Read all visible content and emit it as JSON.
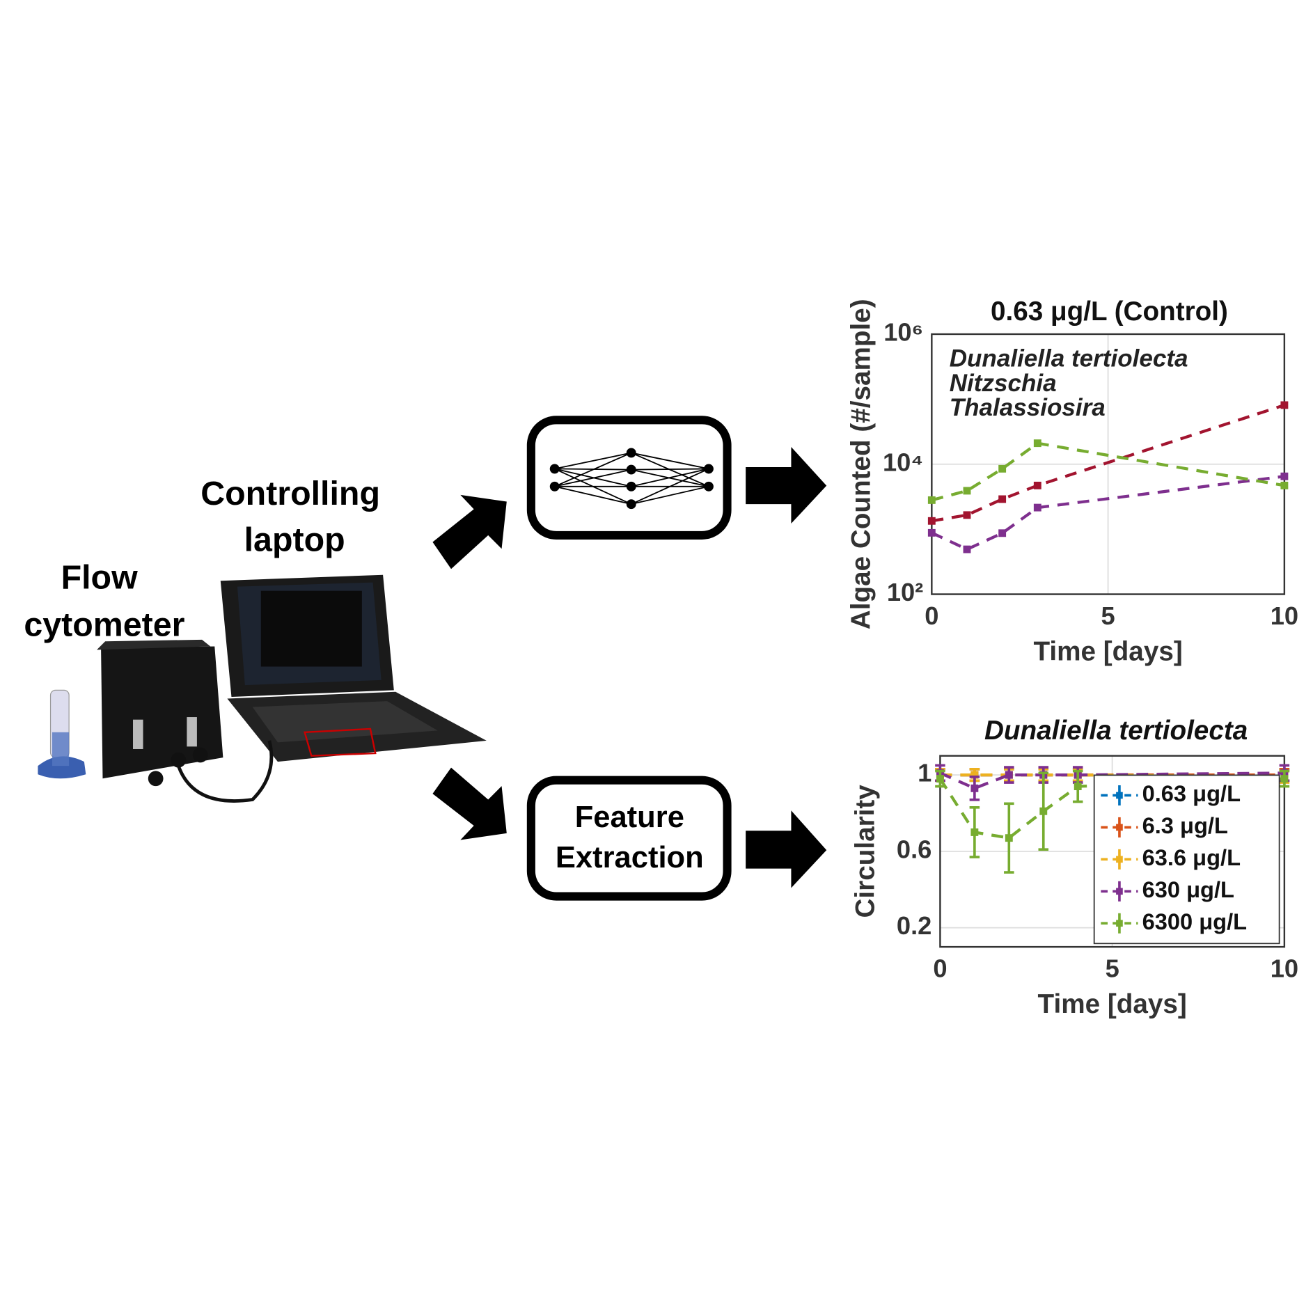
{
  "labels": {
    "flow_cytometer": [
      "Flow",
      "cytometer"
    ],
    "laptop": [
      "Controlling",
      "laptop"
    ],
    "feature_extraction": [
      "Feature",
      "Extraction"
    ]
  },
  "chart_data": [
    {
      "type": "line",
      "title": "0.63 μg/L (Control)",
      "x_label": "Time [days]",
      "y_label": "Algae Counted (#/sample)",
      "x": [
        0,
        1,
        2,
        3,
        10
      ],
      "xlim": [
        0,
        10
      ],
      "xticks": [
        0,
        5,
        10
      ],
      "ylim": [
        100,
        1000000
      ],
      "log_y": true,
      "yticks": [
        {
          "value": 100,
          "label": "10²"
        },
        {
          "value": 10000,
          "label": "10⁴"
        },
        {
          "value": 1000000,
          "label": "10⁶"
        }
      ],
      "grid": true,
      "legend": "upper left",
      "series": [
        {
          "name": "Dunaliella tertiolecta",
          "color": "#a2142f",
          "values": [
            1340,
            1650,
            2900,
            4700,
            81000
          ]
        },
        {
          "name": "Nitzschia",
          "color": "#7e2f8e",
          "values": [
            880,
            490,
            870,
            2150,
            6500
          ]
        },
        {
          "name": "Thalassiosira",
          "color": "#77ac30",
          "values": [
            2800,
            3900,
            8500,
            21000,
            4700
          ]
        }
      ]
    },
    {
      "type": "line",
      "title": "Dunaliella tertiolecta",
      "x_label": "Time [days]",
      "y_label": "Circularity",
      "x": [
        0,
        1,
        2,
        3,
        4,
        10
      ],
      "xlim": [
        0,
        10
      ],
      "xticks": [
        0,
        5,
        10
      ],
      "ylim": [
        0.1,
        1.1
      ],
      "yticks": [
        0.2,
        0.6,
        1
      ],
      "grid": true,
      "legend": "lower right",
      "series": [
        {
          "name": "0.63 μg/L",
          "color": "#0072bd",
          "values": [
            1,
            1,
            1,
            1,
            1,
            1
          ],
          "errors": [
            0.03,
            0.03,
            0.03,
            0.03,
            0.03,
            0.03
          ]
        },
        {
          "name": "6.3 μg/L",
          "color": "#d95319",
          "values": [
            1,
            1,
            1,
            1,
            1,
            1
          ],
          "errors": [
            0.03,
            0.03,
            0.03,
            0.03,
            0.03,
            0.03
          ]
        },
        {
          "name": "63.6 μg/L",
          "color": "#edb120",
          "values": [
            1,
            1,
            1,
            1,
            1,
            0.99
          ],
          "errors": [
            0.03,
            0.03,
            0.03,
            0.03,
            0.03,
            0.03
          ]
        },
        {
          "name": "630 μg/L",
          "color": "#7e2f8e",
          "values": [
            1.01,
            0.93,
            1,
            1,
            1,
            1.01
          ],
          "errors": [
            0.04,
            0.06,
            0.04,
            0.04,
            0.04,
            0.04
          ]
        },
        {
          "name": "6300 μg/L",
          "color": "#77ac30",
          "values": [
            0.98,
            0.7,
            0.67,
            0.81,
            0.94,
            0.98
          ],
          "errors": [
            0.04,
            0.13,
            0.18,
            0.2,
            0.08,
            0.04
          ]
        }
      ]
    }
  ]
}
